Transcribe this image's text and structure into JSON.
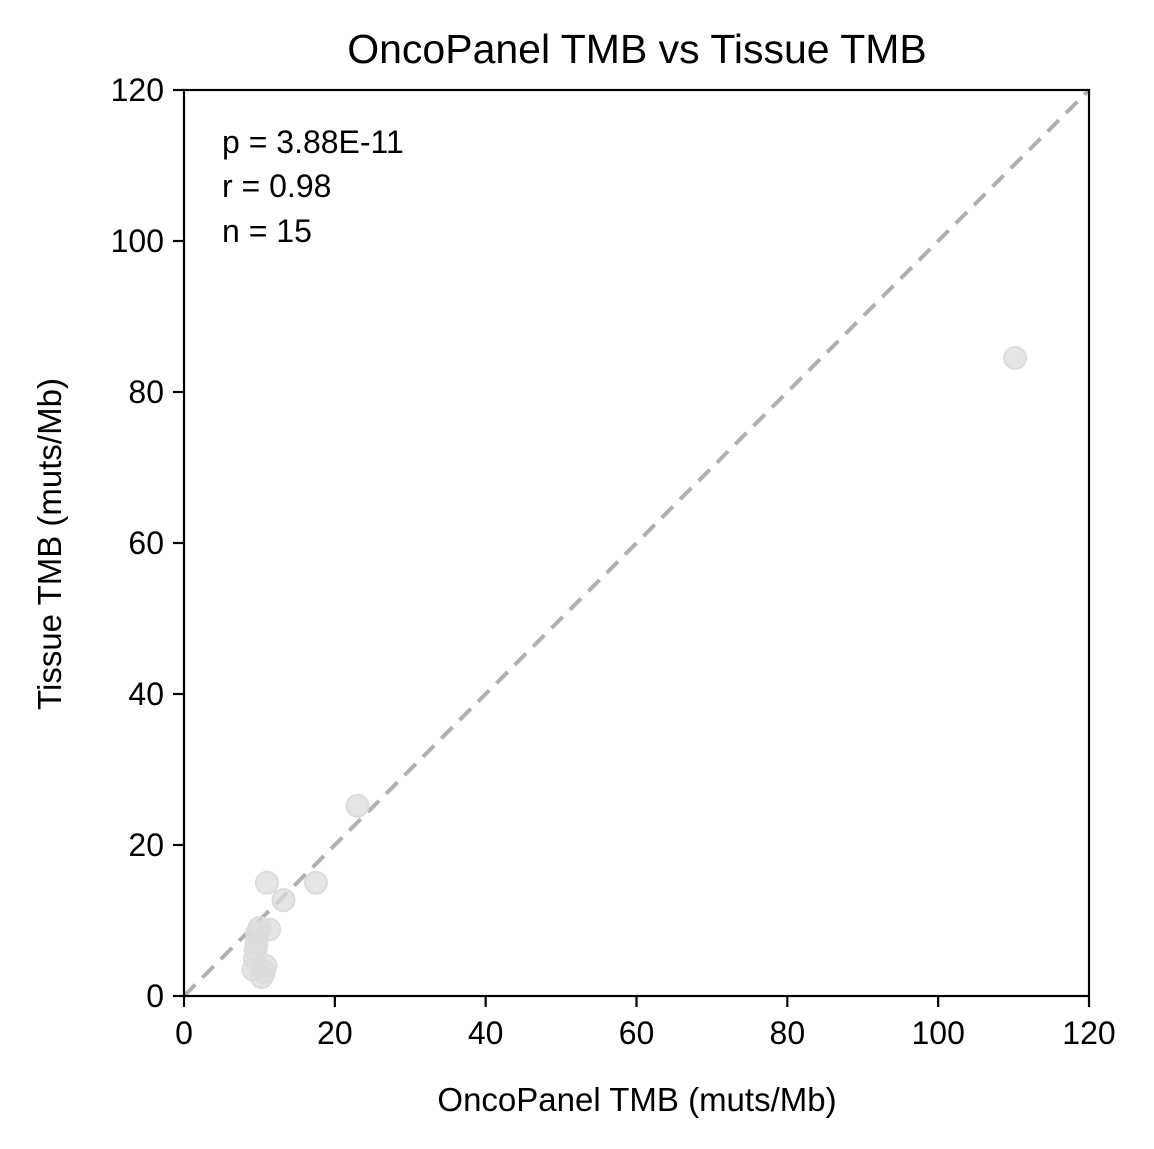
{
  "chart_data": {
    "type": "scatter",
    "title": "OncoPanel TMB vs Tissue TMB",
    "xlabel": "OncoPanel TMB (muts/Mb)",
    "ylabel": "Tissue TMB (muts/Mb)",
    "xlim": [
      0,
      120
    ],
    "ylim": [
      0,
      120
    ],
    "xticks": [
      0,
      20,
      40,
      60,
      80,
      100,
      120
    ],
    "yticks": [
      0,
      20,
      40,
      60,
      80,
      100,
      120
    ],
    "x_tick_labels": [
      "0",
      "20",
      "40",
      "60",
      "80",
      "100",
      "120"
    ],
    "y_tick_labels": [
      "0",
      "20",
      "40",
      "60",
      "80",
      "100",
      "120"
    ],
    "grid": false,
    "reference_line": {
      "type": "identity",
      "style": "dashed",
      "color": "#b0b0b0"
    },
    "annotations": [
      "p = 3.88E-11",
      "r = 0.98",
      "n = 15"
    ],
    "point_color": "#dcdcdc",
    "series": [
      {
        "points": [
          {
            "x": 9.2,
            "y": 3.5
          },
          {
            "x": 9.4,
            "y": 5.0
          },
          {
            "x": 9.5,
            "y": 6.0
          },
          {
            "x": 9.6,
            "y": 7.0
          },
          {
            "x": 9.7,
            "y": 8.3
          },
          {
            "x": 10.0,
            "y": 9.0
          },
          {
            "x": 10.3,
            "y": 2.5
          },
          {
            "x": 10.6,
            "y": 3.2
          },
          {
            "x": 10.8,
            "y": 4.0
          },
          {
            "x": 11.0,
            "y": 15.0
          },
          {
            "x": 11.3,
            "y": 8.8
          },
          {
            "x": 13.2,
            "y": 12.7
          },
          {
            "x": 17.5,
            "y": 15.0
          },
          {
            "x": 23.0,
            "y": 25.2
          },
          {
            "x": 110.2,
            "y": 84.5
          }
        ]
      }
    ]
  }
}
